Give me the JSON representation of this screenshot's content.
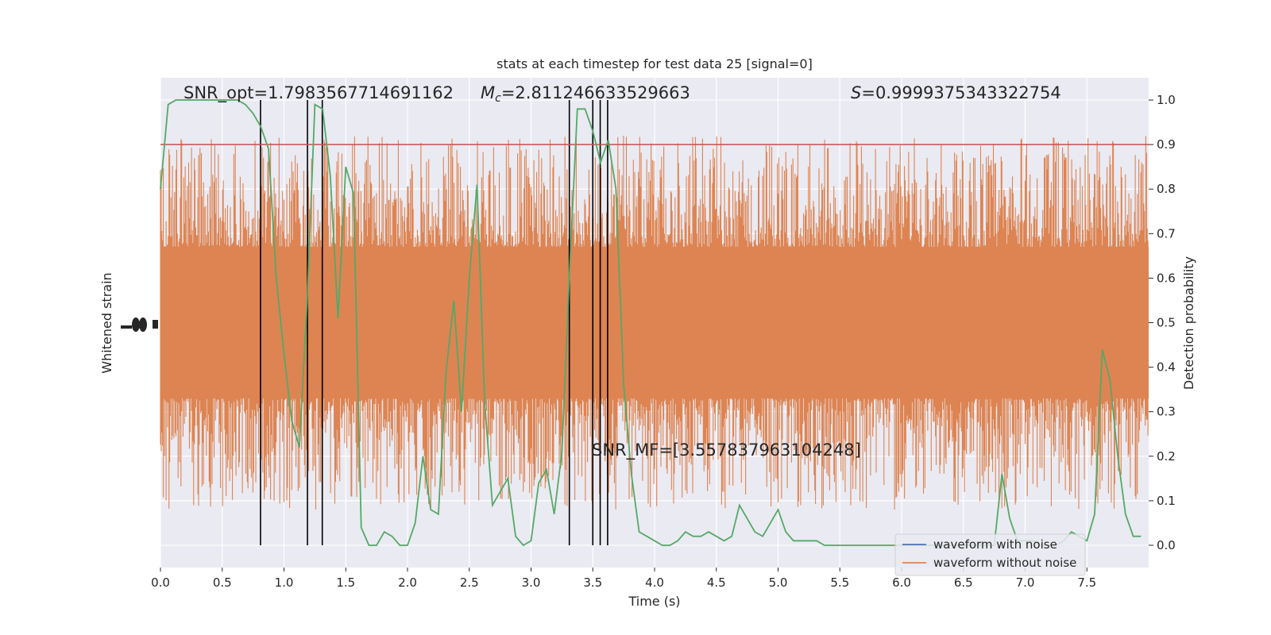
{
  "chart_data": {
    "type": "line",
    "title": "stats at each timestep for test data 25 [signal=0]",
    "xlabel": "Time (s)",
    "ylabel_left": "Whitened strain",
    "ylabel_right": "Detection probability",
    "xlim": [
      0,
      8
    ],
    "ylim_right": [
      -0.05,
      1.05
    ],
    "x_ticks": [
      "0.0",
      "0.5",
      "1.0",
      "1.5",
      "2.0",
      "2.5",
      "3.0",
      "3.5",
      "4.0",
      "4.5",
      "5.0",
      "5.5",
      "6.0",
      "6.5",
      "7.0",
      "7.5"
    ],
    "x_tick_values": [
      0,
      0.5,
      1,
      1.5,
      2,
      2.5,
      3,
      3.5,
      4,
      4.5,
      5,
      5.5,
      6,
      6.5,
      7,
      7.5
    ],
    "y_right_ticks": [
      "0.0",
      "0.1",
      "0.2",
      "0.3",
      "0.4",
      "0.5",
      "0.6",
      "0.7",
      "0.8",
      "0.9",
      "1.0"
    ],
    "y_right_tick_values": [
      0,
      0.1,
      0.2,
      0.3,
      0.4,
      0.5,
      0.6,
      0.7,
      0.8,
      0.9,
      1.0
    ],
    "grid": true,
    "legend_position": "lower right",
    "annotations": {
      "snr_opt": "SNR_opt=1.7983567714691162",
      "mc_symbol": "M",
      "mc_sub": "c",
      "mc_value": "=2.811246633529663",
      "s_symbol": "S",
      "s_value": "=0.9999375343322754",
      "snr_mf": "SNR_MF=[3.557837963104248]"
    },
    "threshold": 0.9,
    "vertical_lines_x": [
      0.81,
      1.19,
      1.31,
      3.31,
      3.5,
      3.56,
      3.62
    ],
    "series": [
      {
        "name": "waveform with noise",
        "color": "#4c72b0",
        "note_values": "noise-dominated band; rendered behind"
      },
      {
        "name": "waveform without noise",
        "color": "#dd8452",
        "band_center": 0.5,
        "band_half_width_typical": 0.17,
        "band_half_width_peak": 0.42
      },
      {
        "name": "detection probability",
        "color": "#55a868",
        "x": [
          0.0,
          0.0625,
          0.125,
          0.1875,
          0.25,
          0.3125,
          0.375,
          0.4375,
          0.5,
          0.5625,
          0.625,
          0.6875,
          0.75,
          0.8125,
          0.875,
          0.9375,
          1.0,
          1.0625,
          1.125,
          1.1875,
          1.25,
          1.3125,
          1.375,
          1.4375,
          1.5,
          1.5625,
          1.625,
          1.6875,
          1.75,
          1.8125,
          1.875,
          1.9375,
          2.0,
          2.0625,
          2.125,
          2.1875,
          2.25,
          2.3125,
          2.375,
          2.4375,
          2.5,
          2.5625,
          2.625,
          2.6875,
          2.75,
          2.8125,
          2.875,
          2.9375,
          3.0,
          3.0625,
          3.125,
          3.1875,
          3.25,
          3.3125,
          3.375,
          3.4375,
          3.5,
          3.5625,
          3.625,
          3.6875,
          3.75,
          3.8125,
          3.875,
          3.9375,
          4.0,
          4.0625,
          4.125,
          4.1875,
          4.25,
          4.3125,
          4.375,
          4.4375,
          4.5,
          4.5625,
          4.625,
          4.6875,
          4.75,
          4.8125,
          4.875,
          4.9375,
          5.0,
          5.0625,
          5.125,
          5.1875,
          5.25,
          5.3125,
          5.375,
          5.4375,
          5.5,
          5.5625,
          5.625,
          5.6875,
          5.75,
          5.8125,
          5.875,
          5.9375,
          6.0,
          6.0625,
          6.125,
          6.1875,
          6.25,
          6.3125,
          6.375,
          6.4375,
          6.5,
          6.5625,
          6.625,
          6.6875,
          6.75,
          6.8125,
          6.875,
          6.9375,
          7.0,
          7.0625,
          7.125,
          7.1875,
          7.25,
          7.3125,
          7.375,
          7.4375,
          7.5,
          7.5625,
          7.625,
          7.6875,
          7.75,
          7.8125,
          7.875,
          7.9375
        ],
        "values": [
          0.8,
          0.99,
          1.0,
          1.0,
          1.0,
          1.0,
          1.0,
          1.0,
          1.0,
          1.0,
          1.0,
          0.99,
          0.97,
          0.94,
          0.89,
          0.6,
          0.43,
          0.28,
          0.22,
          0.55,
          0.99,
          0.98,
          0.83,
          0.51,
          0.85,
          0.79,
          0.04,
          0.0,
          0.0,
          0.03,
          0.02,
          0.0,
          0.0,
          0.05,
          0.2,
          0.08,
          0.07,
          0.39,
          0.55,
          0.3,
          0.6,
          0.81,
          0.32,
          0.09,
          0.12,
          0.15,
          0.02,
          0.0,
          0.01,
          0.14,
          0.17,
          0.07,
          0.21,
          0.62,
          0.98,
          0.98,
          0.93,
          0.86,
          0.91,
          0.8,
          0.36,
          0.16,
          0.03,
          0.02,
          0.01,
          0.0,
          0.0,
          0.01,
          0.03,
          0.02,
          0.02,
          0.03,
          0.02,
          0.01,
          0.02,
          0.09,
          0.06,
          0.03,
          0.02,
          0.05,
          0.08,
          0.03,
          0.01,
          0.01,
          0.01,
          0.01,
          0.0,
          0.0,
          0.0,
          0.0,
          0.0,
          0.0,
          0.0,
          0.0,
          0.0,
          0.0,
          0.0,
          0.0,
          0.0,
          0.0,
          0.0,
          0.0,
          0.0,
          0.0,
          0.0,
          0.0,
          0.0,
          0.0,
          0.0,
          0.16,
          0.06,
          0.01,
          0.01,
          0.01,
          0.0,
          0.0,
          0.0,
          0.01,
          0.03,
          0.02,
          0.01,
          0.07,
          0.44,
          0.37,
          0.2,
          0.07,
          0.02,
          0.02
        ]
      }
    ]
  },
  "colors": {
    "plot_bg": "#eaeaf2",
    "grid": "#ffffff",
    "threshold_line": "#c44e52",
    "event_line": "#000000"
  }
}
